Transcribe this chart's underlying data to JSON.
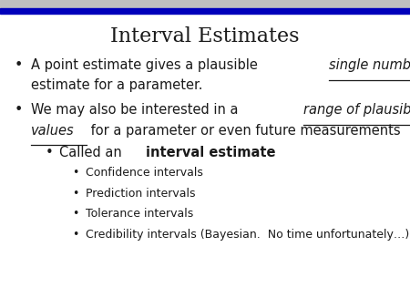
{
  "title": "Interval Estimates",
  "title_fontsize": 16,
  "background_color": "#ffffff",
  "text_color": "#1a1a1a",
  "bar_top_color": "#aaaacc",
  "bar_bottom_color": "#0000cc",
  "bullet1_line1_normal": "A point estimate gives a plausible ",
  "bullet1_line1_italic_ul": "single number",
  "bullet1_line2": "estimate for a parameter.",
  "bullet2_line1_normal": "We may also be interested in a ",
  "bullet2_line1_italic_ul": "range of plausible",
  "bullet2_line2_italic_ul": "values",
  "bullet2_line2_normal": " for a parameter or even future measurements",
  "sub_normal": "Called an ",
  "sub_bold": "interval estimate",
  "sub_sub": [
    "Confidence intervals",
    "Prediction intervals",
    "Tolerance intervals",
    "Credibility intervals (Bayesian.  No time unfortunately…)"
  ],
  "fs_main": 10.5,
  "fs_sub": 9.0,
  "fs_title": 16
}
